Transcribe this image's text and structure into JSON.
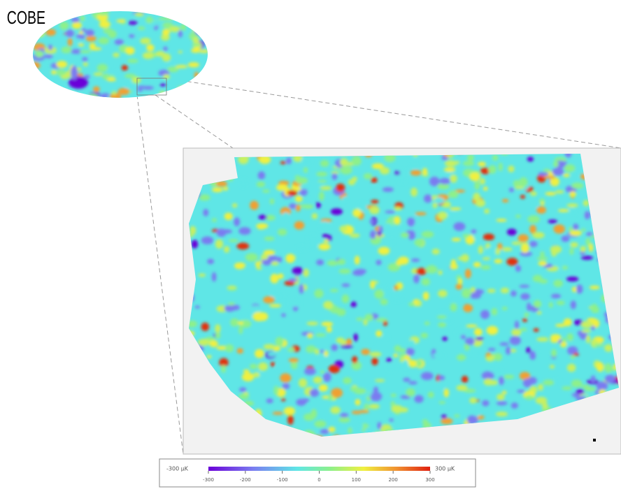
{
  "title": "COBE",
  "colorbar": {
    "min_label": "-300 μK",
    "max_label": "300 μK",
    "lim": [
      -300,
      300
    ],
    "ticks": [
      -300,
      -200,
      -100,
      0,
      100,
      200,
      300
    ]
  }
}
